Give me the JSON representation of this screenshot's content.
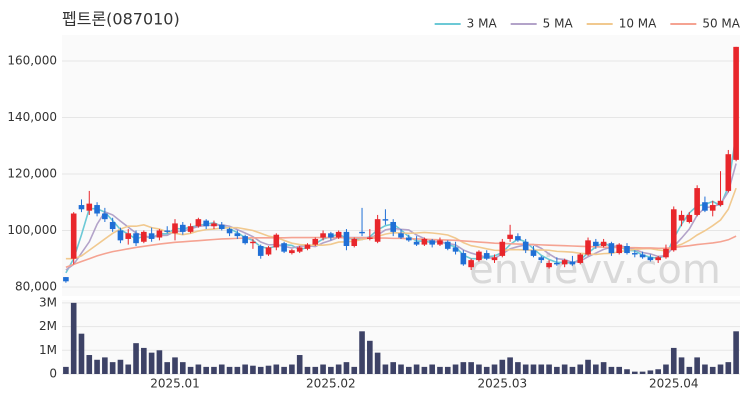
{
  "chart_data": {
    "type": "candlestick",
    "title": "펩트론(087010)",
    "watermark": "envievv.com",
    "categories": [
      null,
      null,
      null,
      null,
      null,
      null,
      null,
      null,
      null,
      null,
      null,
      null,
      null,
      null,
      "2025.01",
      null,
      null,
      null,
      null,
      null,
      null,
      null,
      null,
      null,
      null,
      null,
      null,
      null,
      null,
      null,
      null,
      null,
      null,
      null,
      "2025.02",
      null,
      null,
      null,
      null,
      null,
      null,
      null,
      null,
      null,
      null,
      null,
      null,
      null,
      null,
      null,
      null,
      null,
      null,
      null,
      null,
      null,
      "2025.03",
      null,
      null,
      null,
      null,
      null,
      null,
      null,
      null,
      null,
      null,
      null,
      null,
      null,
      null,
      null,
      null,
      null,
      null,
      null,
      null,
      null,
      "2025.04",
      null,
      null,
      null,
      null,
      null,
      null,
      null,
      null
    ],
    "open": [
      83500,
      90000,
      109000,
      107000,
      109000,
      106000,
      103000,
      100000,
      97000,
      99000,
      96000,
      99000,
      97500,
      100000,
      99000,
      102000,
      99500,
      101500,
      103500,
      101500,
      102000,
      100500,
      99000,
      98000,
      95500,
      94500,
      91500,
      94000,
      95500,
      92000,
      92500,
      93500,
      95000,
      97500,
      99000,
      97500,
      99500,
      94500,
      99500,
      97000,
      96000,
      104000,
      103000,
      99000,
      97500,
      96000,
      95000,
      96500,
      95000,
      96000,
      94000,
      92000,
      87000,
      89500,
      92000,
      89500,
      91000,
      97000,
      98000,
      96000,
      93000,
      90500,
      87000,
      88500,
      88000,
      89000,
      88500,
      91500,
      96000,
      94500,
      95500,
      92000,
      94500,
      92000,
      91500,
      90500,
      89500,
      90500,
      93000,
      103500,
      103000,
      105500,
      110000,
      107000,
      109000,
      114000,
      125000
    ],
    "high": [
      83500,
      106500,
      111000,
      114000,
      110000,
      108000,
      104500,
      101000,
      100500,
      100000,
      100000,
      101000,
      100500,
      101500,
      104000,
      103000,
      102500,
      104500,
      104000,
      103500,
      103000,
      101000,
      100000,
      98500,
      97000,
      95000,
      94500,
      99000,
      96000,
      93500,
      94500,
      95500,
      97500,
      100000,
      99500,
      100000,
      100500,
      97500,
      108000,
      100500,
      105500,
      107500,
      104000,
      100500,
      98500,
      98000,
      97500,
      97000,
      97500,
      96500,
      96000,
      93000,
      90000,
      93000,
      93000,
      91500,
      97000,
      102000,
      99000,
      97000,
      94500,
      91000,
      89500,
      90500,
      90000,
      91000,
      92000,
      97500,
      97000,
      97000,
      96000,
      95500,
      95500,
      93000,
      92500,
      91500,
      91000,
      95000,
      108500,
      107000,
      106500,
      116000,
      112000,
      110500,
      121000,
      128500,
      165000
    ],
    "low": [
      81500,
      88000,
      106500,
      105500,
      105000,
      103000,
      99500,
      95500,
      95000,
      94500,
      95500,
      96000,
      96500,
      99000,
      96500,
      98500,
      99000,
      101000,
      100500,
      100500,
      100000,
      98000,
      97000,
      95000,
      93500,
      90000,
      91000,
      93000,
      92000,
      91500,
      92000,
      93000,
      94500,
      96500,
      96500,
      97000,
      93000,
      94000,
      98000,
      96500,
      95500,
      102000,
      98000,
      97000,
      96000,
      94500,
      94500,
      94000,
      94500,
      93000,
      91500,
      87500,
      86000,
      89000,
      89500,
      88500,
      90500,
      96000,
      96000,
      92000,
      90500,
      88500,
      86500,
      87500,
      87000,
      87500,
      88000,
      91000,
      93500,
      94000,
      91000,
      91500,
      91500,
      90500,
      90000,
      89000,
      88500,
      90000,
      92500,
      101500,
      102500,
      105000,
      106500,
      105000,
      108500,
      113500,
      124500
    ],
    "close": [
      82000,
      106000,
      107500,
      109500,
      106000,
      104000,
      100500,
      96500,
      99000,
      95500,
      99500,
      97000,
      100000,
      99500,
      102500,
      99500,
      101500,
      104000,
      101500,
      102500,
      100500,
      99000,
      98000,
      95500,
      96000,
      91000,
      94000,
      98500,
      92500,
      93000,
      94000,
      95000,
      97000,
      99000,
      97500,
      99500,
      94500,
      97000,
      99000,
      97500,
      104000,
      103500,
      99500,
      97500,
      96500,
      95000,
      97000,
      95000,
      96500,
      93500,
      92500,
      88000,
      89500,
      92500,
      90000,
      90500,
      96000,
      98500,
      96500,
      93000,
      91000,
      89500,
      88500,
      88000,
      89500,
      88000,
      91500,
      96500,
      94500,
      96000,
      92000,
      95000,
      92000,
      91500,
      90500,
      89500,
      90500,
      93500,
      107500,
      105500,
      105500,
      115000,
      107000,
      109000,
      110500,
      127000,
      165000
    ],
    "up_color": "#e8262b",
    "down_color": "#1f6fd6",
    "ylim": [
      76800,
      169200
    ],
    "yticks": [
      {
        "value": 80000,
        "label": "80,000"
      },
      {
        "value": 100000,
        "label": "100,000"
      },
      {
        "value": 120000,
        "label": "120,000"
      },
      {
        "value": 140000,
        "label": "140,000"
      },
      {
        "value": 160000,
        "label": "160,000"
      }
    ],
    "grid": true,
    "legend": "top-right",
    "moving_averages": [
      {
        "name": "3 MA",
        "color": "#6cc9d6",
        "values": [
          85000,
          90000,
          98500,
          107700,
          107700,
          106500,
          103500,
          100300,
          98700,
          97000,
          98000,
          97300,
          98800,
          98800,
          100700,
          100500,
          101200,
          101700,
          102300,
          102700,
          101500,
          100700,
          99200,
          97500,
          96500,
          94200,
          93700,
          94500,
          95000,
          94700,
          93200,
          94000,
          95300,
          97000,
          97800,
          98700,
          97200,
          97000,
          96800,
          97800,
          100200,
          101700,
          102300,
          100200,
          97800,
          96300,
          96200,
          95700,
          96200,
          95000,
          94200,
          91300,
          90000,
          90000,
          90700,
          91000,
          92200,
          95000,
          97000,
          96000,
          93500,
          91200,
          89700,
          88700,
          88700,
          88500,
          89700,
          92000,
          94200,
          95700,
          94200,
          94300,
          93000,
          92800,
          91300,
          90500,
          90200,
          91200,
          97200,
          102200,
          106200,
          108700,
          109200,
          110300,
          108800,
          115500,
          134200
        ]
      },
      {
        "name": "5 MA",
        "color": "#b3a3c9",
        "values": [
          86000,
          88000,
          92000,
          96000,
          102200,
          106600,
          105500,
          103300,
          101200,
          99100,
          98100,
          97500,
          98200,
          98300,
          99700,
          99700,
          100600,
          101400,
          101800,
          101800,
          102000,
          101500,
          100300,
          99100,
          97800,
          95900,
          94900,
          95000,
          94400,
          93800,
          94400,
          94600,
          94300,
          95600,
          96500,
          97600,
          97500,
          97500,
          97500,
          97500,
          98400,
          100200,
          100700,
          100400,
          100200,
          98400,
          97100,
          96200,
          96000,
          95400,
          94900,
          93100,
          92000,
          91200,
          90500,
          90100,
          91700,
          93500,
          94300,
          94900,
          95000,
          93700,
          91700,
          90000,
          89700,
          88700,
          89100,
          90700,
          92000,
          93300,
          94100,
          94800,
          93900,
          93300,
          92200,
          91700,
          90800,
          91100,
          94300,
          97300,
          100500,
          105400,
          108100,
          108400,
          109400,
          113700,
          123700
        ]
      },
      {
        "name": "10 MA",
        "color": "#f1c98f",
        "values": [
          90000,
          90000,
          91000,
          93000,
          95000,
          97000,
          99000,
          100500,
          101500,
          101500,
          102000,
          101000,
          100500,
          99500,
          99000,
          98500,
          99000,
          99800,
          100300,
          100500,
          100800,
          101000,
          101000,
          100500,
          100000,
          99000,
          98000,
          97500,
          96500,
          95500,
          95000,
          94800,
          94800,
          94800,
          95100,
          95900,
          96000,
          96200,
          96800,
          97300,
          97900,
          98700,
          99200,
          99100,
          99000,
          99100,
          99300,
          99100,
          98800,
          98400,
          97300,
          95700,
          94600,
          94100,
          93500,
          93000,
          92900,
          93200,
          93200,
          93100,
          93000,
          93100,
          93000,
          92600,
          92500,
          92300,
          91900,
          91700,
          91500,
          91800,
          91900,
          92500,
          92900,
          93300,
          93500,
          93600,
          93100,
          92800,
          94200,
          95100,
          96500,
          98400,
          99900,
          101700,
          103700,
          107500,
          115000
        ]
      },
      {
        "name": "50 MA",
        "color": "#f5a392",
        "values": [
          87000,
          88000,
          89000,
          90000,
          91000,
          91800,
          92500,
          93000,
          93500,
          94000,
          94400,
          94800,
          95200,
          95500,
          95800,
          96000,
          96200,
          96400,
          96600,
          96800,
          97000,
          97100,
          97200,
          97300,
          97400,
          97400,
          97400,
          97400,
          97400,
          97500,
          97500,
          97500,
          97500,
          97500,
          97500,
          97500,
          97400,
          97400,
          97400,
          97300,
          97300,
          97300,
          97200,
          97200,
          97100,
          97000,
          96900,
          96800,
          96700,
          96600,
          96500,
          96300,
          96100,
          95900,
          95700,
          95500,
          95400,
          95300,
          95200,
          95100,
          95000,
          94900,
          94800,
          94700,
          94600,
          94500,
          94400,
          94300,
          94200,
          94100,
          94000,
          94000,
          93900,
          93900,
          93800,
          93800,
          93700,
          93700,
          94000,
          94300,
          94600,
          95000,
          95300,
          95600,
          96000,
          96700,
          98000
        ]
      }
    ],
    "volume": {
      "color": "#3d4266",
      "values": [
        300000,
        3000000,
        1700000,
        800000,
        600000,
        700000,
        500000,
        600000,
        400000,
        1300000,
        1100000,
        900000,
        1000000,
        500000,
        700000,
        500000,
        300000,
        400000,
        300000,
        300000,
        400000,
        300000,
        300000,
        400000,
        350000,
        300000,
        350000,
        400000,
        300000,
        400000,
        800000,
        300000,
        300000,
        400000,
        300000,
        400000,
        500000,
        300000,
        1800000,
        1400000,
        900000,
        400000,
        500000,
        400000,
        300000,
        400000,
        300000,
        400000,
        300000,
        300000,
        400000,
        500000,
        500000,
        400000,
        300000,
        400000,
        600000,
        700000,
        500000,
        400000,
        400000,
        400000,
        400000,
        300000,
        400000,
        300000,
        400000,
        600000,
        400000,
        500000,
        300000,
        300000,
        200000,
        100000,
        100000,
        150000,
        200000,
        400000,
        1100000,
        700000,
        300000,
        700000,
        400000,
        300000,
        400000,
        500000,
        1800000
      ],
      "ylim": [
        0,
        3120000
      ],
      "yticks": [
        0,
        {
          "value": 1000000,
          "label": "1M"
        },
        {
          "value": 2000000,
          "label": "2M"
        },
        {
          "value": 3000000,
          "label": "3M"
        }
      ]
    }
  }
}
